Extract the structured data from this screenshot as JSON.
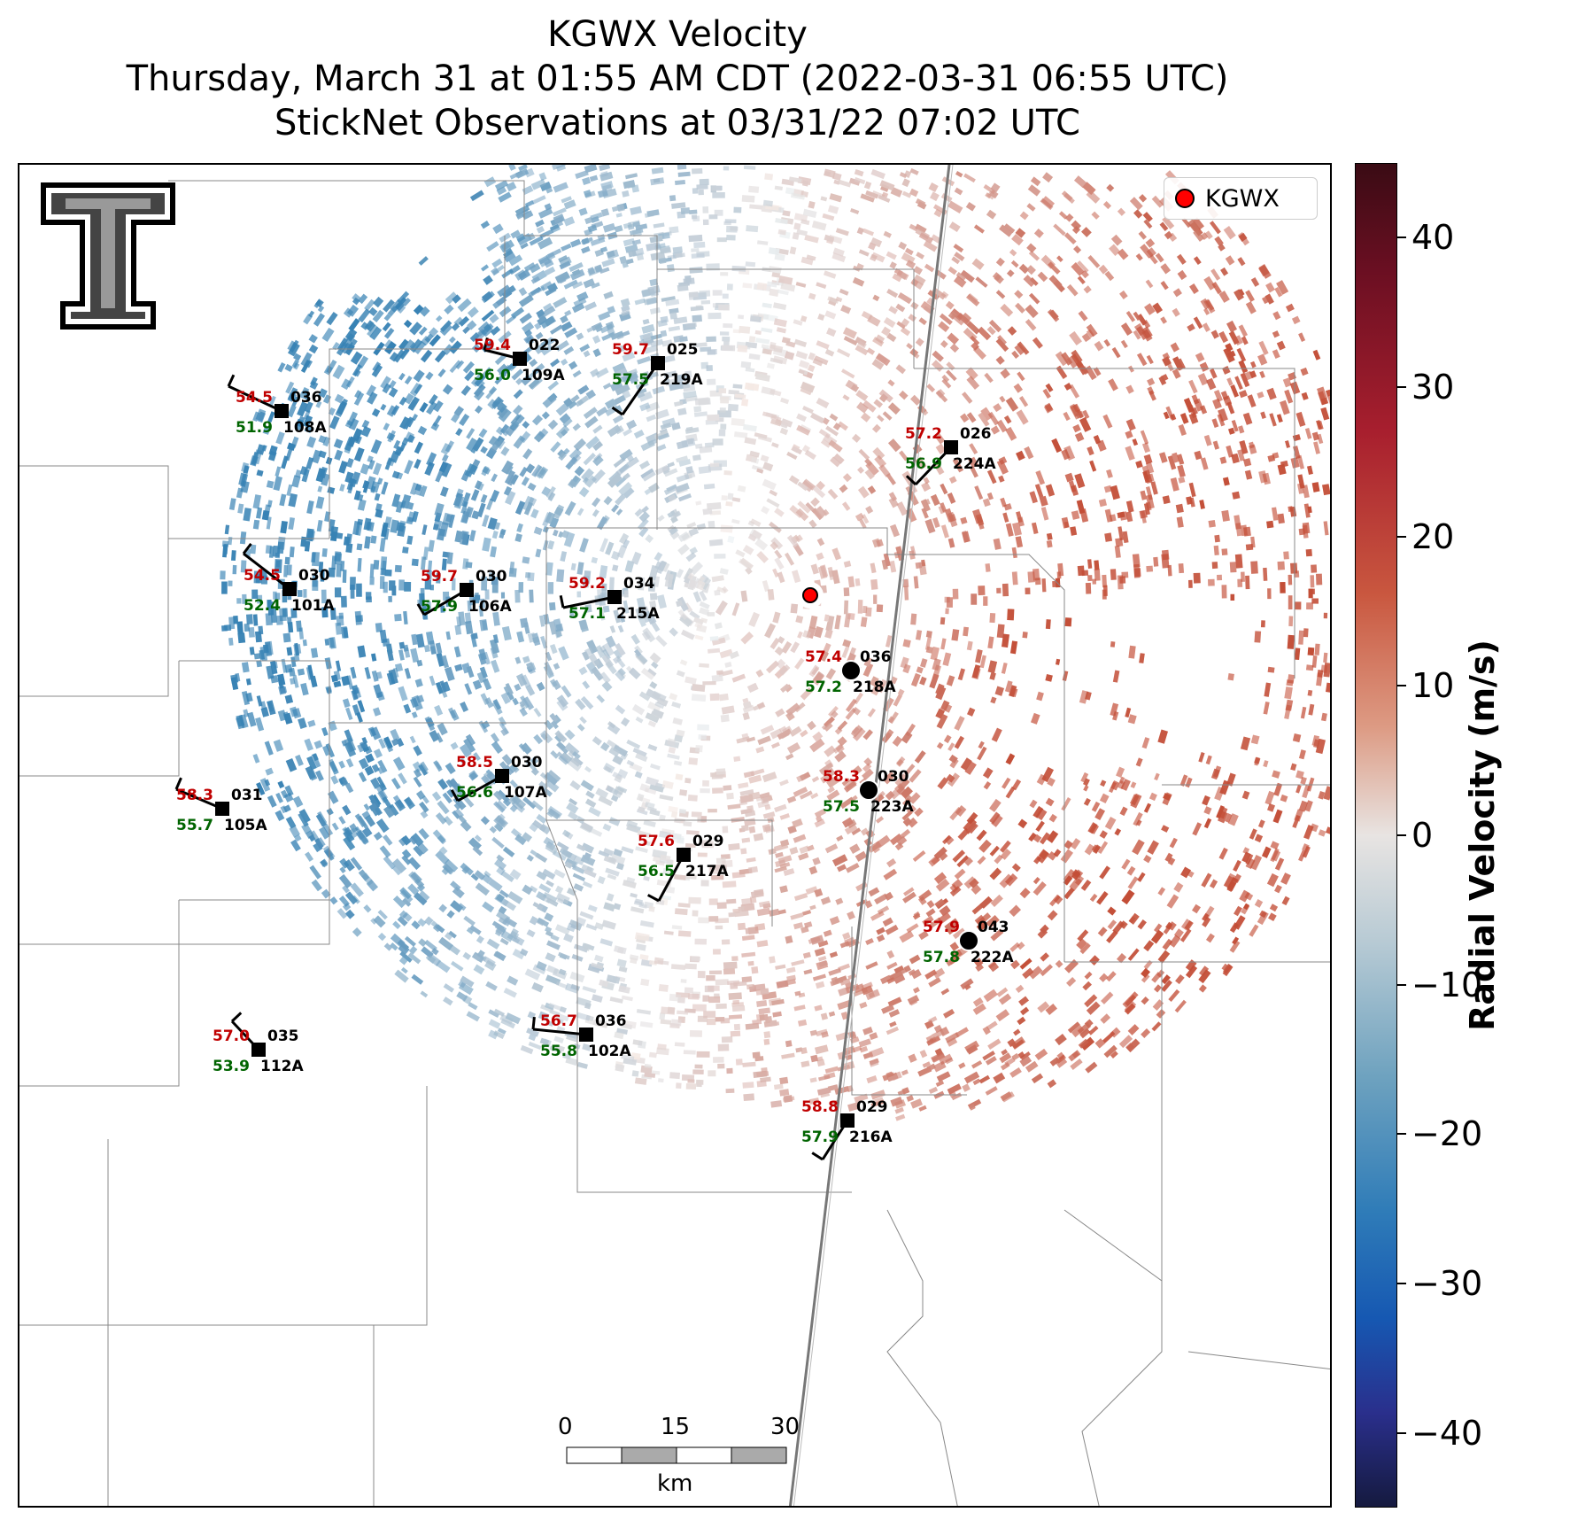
{
  "title": {
    "line1": "KGWX Velocity",
    "line2": "Thursday, March 31 at 01:55 AM CDT (2022-03-31 06:55 UTC)",
    "line3": "StickNet Observations at 03/31/22 07:02 UTC"
  },
  "legend": {
    "label": "KGWX",
    "marker_color": "#ff0000"
  },
  "colorbar": {
    "label": "Radial Velocity (m/s)",
    "range": [
      -45,
      45
    ],
    "ticks": [
      {
        "value": 40,
        "label": "40"
      },
      {
        "value": 30,
        "label": "30"
      },
      {
        "value": 20,
        "label": "20"
      },
      {
        "value": 10,
        "label": "10"
      },
      {
        "value": 0,
        "label": "0"
      },
      {
        "value": -10,
        "label": "−10"
      },
      {
        "value": -20,
        "label": "−20"
      },
      {
        "value": -30,
        "label": "−30"
      },
      {
        "value": -40,
        "label": "−40"
      }
    ]
  },
  "scale_bar": {
    "ticks": [
      "0",
      "15",
      "30"
    ],
    "unit": "km"
  },
  "logo": {
    "name": "texas-tech-double-t-logo"
  },
  "stations": [
    {
      "id": "022",
      "probe": "109A",
      "temp": "59.4",
      "dew": "56.0",
      "marker": "square"
    },
    {
      "id": "036",
      "probe": "108A",
      "temp": "54.5",
      "dew": "51.9",
      "marker": "square"
    },
    {
      "id": "025",
      "probe": "219A",
      "temp": "59.7",
      "dew": "57.5",
      "marker": "square"
    },
    {
      "id": "026",
      "probe": "224A",
      "temp": "57.2",
      "dew": "56.9",
      "marker": "square"
    },
    {
      "id": "030",
      "probe": "101A",
      "temp": "54.5",
      "dew": "52.4",
      "marker": "square"
    },
    {
      "id": "030",
      "probe": "106A",
      "temp": "59.7",
      "dew": "57.9",
      "marker": "square"
    },
    {
      "id": "034",
      "probe": "215A",
      "temp": "59.2",
      "dew": "57.1",
      "marker": "square"
    },
    {
      "id": "036",
      "probe": "218A",
      "temp": "57.4",
      "dew": "57.2",
      "marker": "circle"
    },
    {
      "id": "030",
      "probe": "107A",
      "temp": "58.5",
      "dew": "56.6",
      "marker": "square"
    },
    {
      "id": "031",
      "probe": "105A",
      "temp": "58.3",
      "dew": "55.7",
      "marker": "square"
    },
    {
      "id": "030",
      "probe": "223A",
      "temp": "58.3",
      "dew": "57.5",
      "marker": "circle"
    },
    {
      "id": "029",
      "probe": "217A",
      "temp": "57.6",
      "dew": "56.5",
      "marker": "square"
    },
    {
      "id": "043",
      "probe": "222A",
      "temp": "57.9",
      "dew": "57.8",
      "marker": "circle"
    },
    {
      "id": "036",
      "probe": "102A",
      "temp": "56.7",
      "dew": "55.8",
      "marker": "square"
    },
    {
      "id": "035",
      "probe": "112A",
      "temp": "57.0",
      "dew": "53.9",
      "marker": "square"
    },
    {
      "id": "029",
      "probe": "216A",
      "temp": "58.8",
      "dew": "57.9",
      "marker": "square"
    }
  ]
}
